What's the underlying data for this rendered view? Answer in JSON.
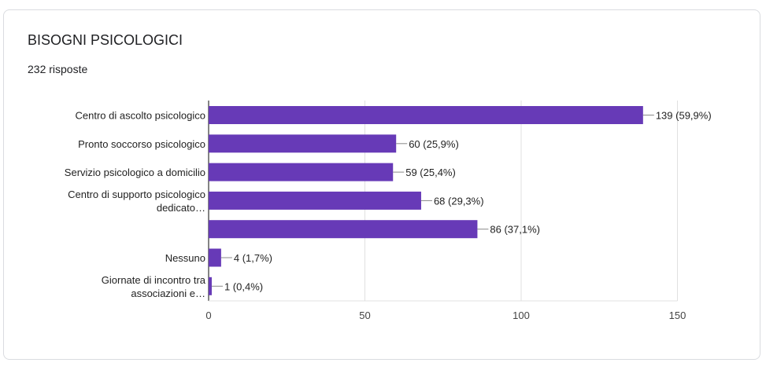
{
  "header": {
    "title": "BISOGNI PSICOLOGICI",
    "responses": "232 risposte"
  },
  "colors": {
    "bar": "#673ab7",
    "grid": "#e0e0e0",
    "axis": "#333333"
  },
  "chart_data": {
    "type": "bar",
    "orientation": "horizontal",
    "categories": [
      [
        "Centro di ascolto psicologico"
      ],
      [
        "Pronto soccorso psicologico"
      ],
      [
        "Servizio psicologico a domicilio"
      ],
      [
        "Centro di supporto psicologico",
        "dedicato…"
      ],
      [],
      [
        "Nessuno"
      ],
      [
        "Giornate di incontro tra",
        "associazioni e…"
      ]
    ],
    "values": [
      139,
      60,
      59,
      68,
      86,
      4,
      1
    ],
    "data_labels": [
      "139 (59,9%)",
      "60 (25,9%)",
      "59 (25,4%)",
      "68 (29,3%)",
      "86 (37,1%)",
      "4 (1,7%)",
      "1 (0,4%)"
    ],
    "xlim": [
      0,
      150
    ],
    "xticks": [
      0,
      50,
      100,
      150
    ],
    "grid": true,
    "legend": "none"
  }
}
